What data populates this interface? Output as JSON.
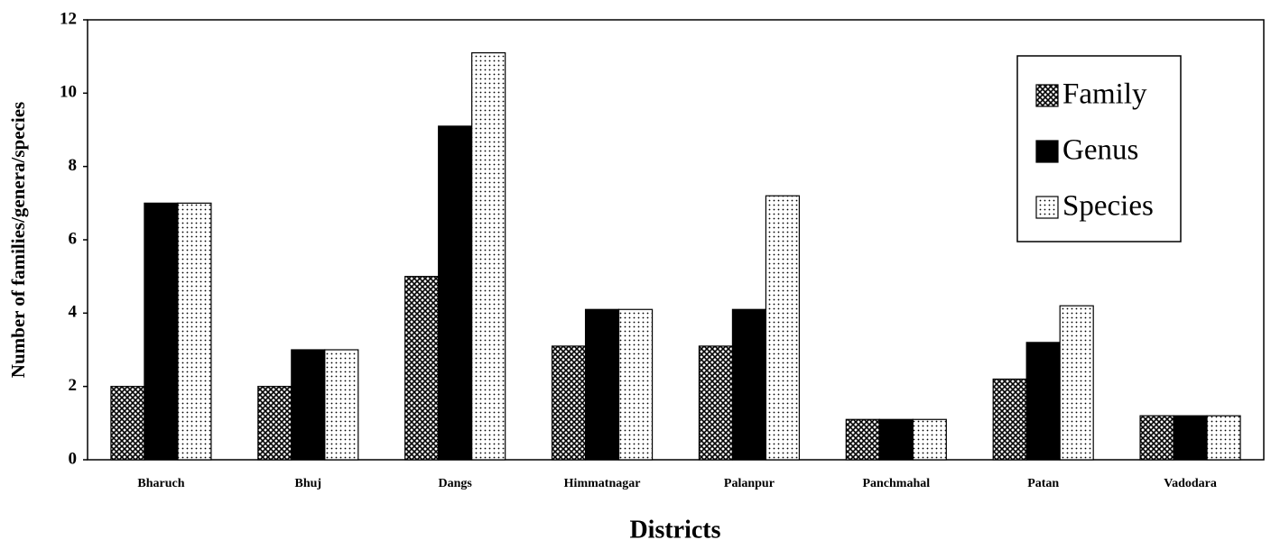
{
  "chart_data": {
    "type": "bar",
    "xlabel": "Districts",
    "ylabel": "Number of families/genera/species",
    "categories": [
      "Bharuch",
      "Bhuj",
      "Dangs",
      "Himmatnagar",
      "Palanpur",
      "Panchmahal",
      "Patan",
      "Vadodara"
    ],
    "series": [
      {
        "name": "Family",
        "color": "#000000",
        "pattern": "crosshatch",
        "values": [
          2,
          2,
          5,
          3.1,
          3.1,
          1.1,
          2.2,
          1.2
        ]
      },
      {
        "name": "Genus",
        "color": "#000000",
        "pattern": "solid",
        "values": [
          7,
          3,
          9.1,
          4.1,
          4.1,
          1.1,
          3.2,
          1.2
        ]
      },
      {
        "name": "Species",
        "color": "#000000",
        "pattern": "dots",
        "values": [
          7,
          3,
          11.1,
          4.1,
          7.2,
          1.1,
          4.2,
          1.2
        ]
      }
    ],
    "ylim": [
      0,
      12
    ],
    "yticks": [
      0,
      2,
      4,
      6,
      8,
      10,
      12
    ],
    "legend": "upper right"
  }
}
